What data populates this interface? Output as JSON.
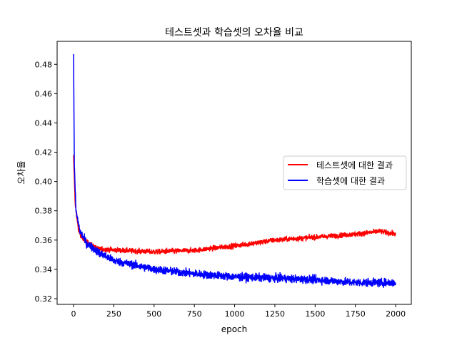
{
  "chart_data": {
    "type": "line",
    "title": "테스트셋과 학습셋의 오차율 비교",
    "xlabel": "epoch",
    "ylabel": "오차율",
    "xlim": [
      -102,
      2097
    ],
    "ylim": [
      0.3161,
      0.4957
    ],
    "xticks": [
      0,
      250,
      500,
      750,
      1000,
      1250,
      1500,
      1750,
      2000
    ],
    "yticks": [
      0.32,
      0.34,
      0.36,
      0.38,
      0.4,
      0.42,
      0.44,
      0.46,
      0.48
    ],
    "legend_position": "center-right",
    "n_points": 2000,
    "series": [
      {
        "name": "테스트셋에 대한 결과",
        "color": "#ff0000",
        "noise": 0.0018,
        "trend_x": [
          0,
          10,
          30,
          60,
          150,
          300,
          500,
          750,
          1000,
          1250,
          1500,
          1750,
          1900,
          2000
        ],
        "trend_y": [
          0.418,
          0.385,
          0.367,
          0.36,
          0.354,
          0.353,
          0.352,
          0.353,
          0.356,
          0.36,
          0.362,
          0.364,
          0.366,
          0.364
        ]
      },
      {
        "name": "학습셋에 대한 결과",
        "color": "#0000ff",
        "noise": 0.0028,
        "trend_x": [
          0,
          5,
          15,
          40,
          80,
          150,
          250,
          500,
          750,
          1000,
          1250,
          1500,
          1750,
          2000
        ],
        "trend_y": [
          0.487,
          0.41,
          0.38,
          0.366,
          0.358,
          0.352,
          0.346,
          0.34,
          0.337,
          0.335,
          0.334,
          0.333,
          0.331,
          0.331
        ]
      }
    ]
  }
}
